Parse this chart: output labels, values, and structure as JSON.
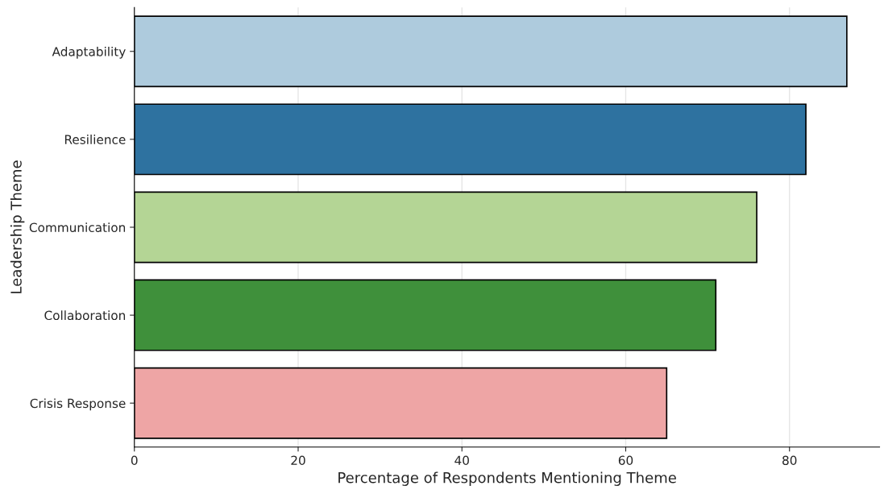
{
  "chart_data": {
    "type": "bar",
    "orientation": "horizontal",
    "xlabel": "Percentage of Respondents Mentioning Theme",
    "ylabel": "Leadership Theme",
    "categories": [
      "Adaptability",
      "Resilience",
      "Communication",
      "Collaboration",
      "Crisis Response"
    ],
    "values": [
      87,
      82,
      76,
      71,
      65
    ],
    "colors": [
      "#aecbdd",
      "#2e72a0",
      "#b4d595",
      "#3f903b",
      "#eea5a5"
    ],
    "xlim": [
      0,
      91
    ],
    "xticks": [
      0,
      20,
      40,
      60,
      80
    ],
    "grid": "x"
  }
}
